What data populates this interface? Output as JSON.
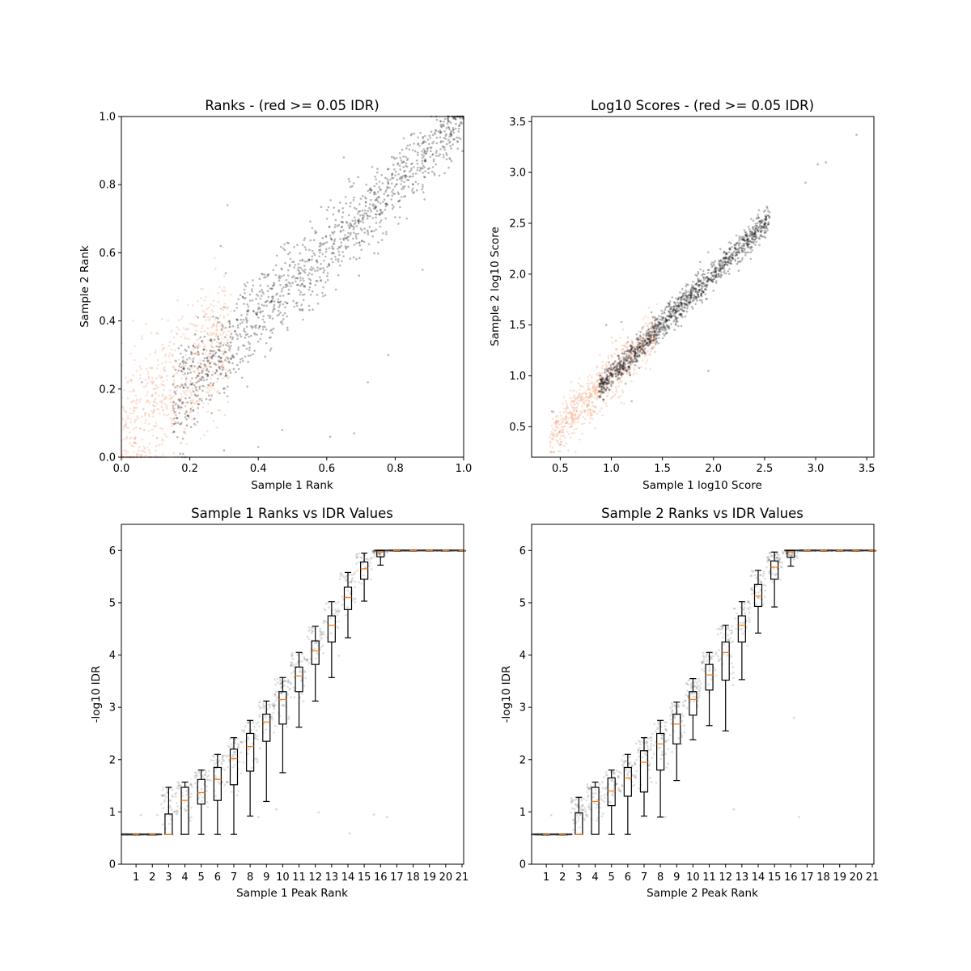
{
  "chart_data": [
    {
      "type": "scatter",
      "title": "Ranks - (red >= 0.05 IDR)",
      "xlabel": "Sample 1 Rank",
      "ylabel": "Sample 2 Rank",
      "xlim": [
        0.0,
        1.0
      ],
      "ylim": [
        0.0,
        1.0
      ],
      "xticks": [
        "0.0",
        "0.2",
        "0.4",
        "0.6",
        "0.8",
        "1.0"
      ],
      "yticks": [
        "0.0",
        "0.2",
        "0.4",
        "0.6",
        "0.8",
        "1.0"
      ],
      "colors": {
        "pass": "#000000",
        "fail": "#f4a582"
      },
      "series": [
        {
          "idr": "fail",
          "x_range": [
            0.0,
            0.32
          ],
          "trend": [
            0.04,
            1.05
          ],
          "spread": 0.09
        },
        {
          "idr": "pass",
          "x_range": [
            0.15,
            1.0
          ],
          "trend": [
            0.02,
            0.97
          ],
          "spread": 0.07
        }
      ],
      "outliers": [
        [
          0.65,
          0.88
        ],
        [
          0.31,
          0.74
        ],
        [
          0.78,
          0.3
        ],
        [
          0.72,
          0.22
        ],
        [
          0.47,
          0.08
        ],
        [
          0.68,
          0.07
        ],
        [
          0.61,
          0.06
        ],
        [
          0.4,
          0.03
        ],
        [
          0.3,
          0.02
        ],
        [
          0.06,
          0.22
        ],
        [
          0.33,
          0.43
        ],
        [
          0.29,
          0.62
        ],
        [
          0.88,
          0.55
        ]
      ]
    },
    {
      "type": "scatter",
      "title": "Log10 Scores - (red >= 0.05 IDR)",
      "xlabel": "Sample 1 log10 Score",
      "ylabel": "Sample 2 log10 Score",
      "xlim": [
        0.22,
        3.57
      ],
      "ylim": [
        0.2,
        3.55
      ],
      "xticks": [
        "0.5",
        "1.0",
        "1.5",
        "2.0",
        "2.5",
        "3.0",
        "3.5"
      ],
      "yticks": [
        "0.5",
        "1.0",
        "1.5",
        "2.0",
        "2.5",
        "3.0",
        "3.5"
      ],
      "colors": {
        "pass": "#000000",
        "fail": "#f4a582"
      },
      "series": [
        {
          "idr": "fail",
          "x_range": [
            0.4,
            1.45
          ],
          "trend": [
            0.0,
            1.0
          ],
          "spread": 0.12
        },
        {
          "idr": "pass",
          "x_range": [
            0.88,
            2.55
          ],
          "trend": [
            0.0,
            1.0
          ],
          "spread": 0.07
        }
      ],
      "outliers": [
        [
          3.4,
          3.37
        ],
        [
          3.1,
          3.1
        ],
        [
          3.02,
          3.08
        ],
        [
          2.9,
          2.9
        ],
        [
          1.95,
          1.05
        ],
        [
          1.1,
          1.53
        ],
        [
          0.95,
          1.5
        ],
        [
          0.42,
          0.65
        ],
        [
          1.2,
          0.75
        ]
      ]
    },
    {
      "type": "box",
      "title": "Sample 1 Ranks vs IDR Values",
      "xlabel": "Sample 1 Peak Rank",
      "ylabel": "-log10 IDR",
      "ylim": [
        0,
        6.5
      ],
      "yticks": [
        "0",
        "1",
        "2",
        "3",
        "4",
        "5",
        "6"
      ],
      "categories": [
        "1",
        "2",
        "3",
        "4",
        "5",
        "6",
        "7",
        "8",
        "9",
        "10",
        "11",
        "12",
        "13",
        "14",
        "15",
        "16",
        "17",
        "18",
        "19",
        "20",
        "21"
      ],
      "boxes": [
        {
          "whislo": 0.57,
          "q1": 0.57,
          "med": 0.57,
          "q3": 0.57,
          "whishi": 0.57
        },
        {
          "whislo": 0.57,
          "q1": 0.57,
          "med": 0.57,
          "q3": 0.57,
          "whishi": 0.57
        },
        {
          "whislo": 0.57,
          "q1": 0.57,
          "med": 0.57,
          "q3": 0.96,
          "whishi": 1.47
        },
        {
          "whislo": 0.57,
          "q1": 0.57,
          "med": 1.22,
          "q3": 1.47,
          "whishi": 1.57
        },
        {
          "whislo": 0.57,
          "q1": 1.15,
          "med": 1.37,
          "q3": 1.62,
          "whishi": 1.8
        },
        {
          "whislo": 0.57,
          "q1": 1.22,
          "med": 1.62,
          "q3": 1.85,
          "whishi": 2.1
        },
        {
          "whislo": 0.57,
          "q1": 1.52,
          "med": 2.02,
          "q3": 2.2,
          "whishi": 2.42
        },
        {
          "whislo": 0.92,
          "q1": 1.78,
          "med": 2.25,
          "q3": 2.5,
          "whishi": 2.75
        },
        {
          "whislo": 1.2,
          "q1": 2.35,
          "med": 2.72,
          "q3": 2.87,
          "whishi": 3.12
        },
        {
          "whislo": 1.75,
          "q1": 2.68,
          "med": 3.15,
          "q3": 3.3,
          "whishi": 3.57
        },
        {
          "whislo": 2.62,
          "q1": 3.3,
          "med": 3.6,
          "q3": 3.77,
          "whishi": 4.05
        },
        {
          "whislo": 3.12,
          "q1": 3.82,
          "med": 4.08,
          "q3": 4.27,
          "whishi": 4.55
        },
        {
          "whislo": 3.57,
          "q1": 4.25,
          "med": 4.57,
          "q3": 4.75,
          "whishi": 5.02
        },
        {
          "whislo": 4.33,
          "q1": 4.87,
          "med": 5.1,
          "q3": 5.3,
          "whishi": 5.58
        },
        {
          "whislo": 5.03,
          "q1": 5.45,
          "med": 5.65,
          "q3": 5.78,
          "whishi": 5.95
        },
        {
          "whislo": 5.72,
          "q1": 5.88,
          "med": 5.97,
          "q3": 6.0,
          "whishi": 6.0
        },
        {
          "whislo": 6.0,
          "q1": 6.0,
          "med": 6.0,
          "q3": 6.0,
          "whishi": 6.0
        },
        {
          "whislo": 6.0,
          "q1": 6.0,
          "med": 6.0,
          "q3": 6.0,
          "whishi": 6.0
        },
        {
          "whislo": 6.0,
          "q1": 6.0,
          "med": 6.0,
          "q3": 6.0,
          "whishi": 6.0
        },
        {
          "whislo": 6.0,
          "q1": 6.0,
          "med": 6.0,
          "q3": 6.0,
          "whishi": 6.0
        },
        {
          "whislo": 6.0,
          "q1": 6.0,
          "med": 6.0,
          "q3": 6.0,
          "whishi": 6.0
        }
      ],
      "outliers": [
        [
          1.3,
          0.94
        ],
        [
          2.3,
          0.94
        ],
        [
          12.2,
          0.99
        ],
        [
          14.1,
          0.59
        ],
        [
          15.6,
          0.95
        ],
        [
          16.4,
          0.9
        ],
        [
          8.5,
          0.9
        ],
        [
          9.6,
          1.05
        ]
      ]
    },
    {
      "type": "box",
      "title": "Sample 2 Ranks vs IDR Values",
      "xlabel": "Sample 2 Peak Rank",
      "ylabel": "-log10 IDR",
      "ylim": [
        0,
        6.5
      ],
      "yticks": [
        "0",
        "1",
        "2",
        "3",
        "4",
        "5",
        "6"
      ],
      "categories": [
        "1",
        "2",
        "3",
        "4",
        "5",
        "6",
        "7",
        "8",
        "9",
        "10",
        "11",
        "12",
        "13",
        "14",
        "15",
        "16",
        "17",
        "18",
        "19",
        "20",
        "21"
      ],
      "boxes": [
        {
          "whislo": 0.57,
          "q1": 0.57,
          "med": 0.57,
          "q3": 0.57,
          "whishi": 0.57
        },
        {
          "whislo": 0.57,
          "q1": 0.57,
          "med": 0.57,
          "q3": 0.57,
          "whishi": 0.57
        },
        {
          "whislo": 0.57,
          "q1": 0.57,
          "med": 0.57,
          "q3": 0.98,
          "whishi": 1.28
        },
        {
          "whislo": 0.57,
          "q1": 0.57,
          "med": 1.2,
          "q3": 1.47,
          "whishi": 1.57
        },
        {
          "whislo": 0.57,
          "q1": 1.12,
          "med": 1.4,
          "q3": 1.65,
          "whishi": 1.8
        },
        {
          "whislo": 0.57,
          "q1": 1.3,
          "med": 1.65,
          "q3": 1.85,
          "whishi": 2.1
        },
        {
          "whislo": 0.92,
          "q1": 1.38,
          "med": 1.95,
          "q3": 2.17,
          "whishi": 2.42
        },
        {
          "whislo": 0.9,
          "q1": 1.8,
          "med": 2.3,
          "q3": 2.5,
          "whishi": 2.75
        },
        {
          "whislo": 1.6,
          "q1": 2.3,
          "med": 2.68,
          "q3": 2.87,
          "whishi": 3.1
        },
        {
          "whislo": 2.38,
          "q1": 2.85,
          "med": 3.15,
          "q3": 3.3,
          "whishi": 3.55
        },
        {
          "whislo": 2.65,
          "q1": 3.33,
          "med": 3.62,
          "q3": 3.82,
          "whishi": 4.05
        },
        {
          "whislo": 2.55,
          "q1": 3.52,
          "med": 4.05,
          "q3": 4.25,
          "whishi": 4.57
        },
        {
          "whislo": 3.53,
          "q1": 4.25,
          "med": 4.57,
          "q3": 4.75,
          "whishi": 5.02
        },
        {
          "whislo": 4.42,
          "q1": 4.93,
          "med": 5.13,
          "q3": 5.35,
          "whishi": 5.62
        },
        {
          "whislo": 4.92,
          "q1": 5.45,
          "med": 5.68,
          "q3": 5.8,
          "whishi": 5.97
        },
        {
          "whislo": 5.7,
          "q1": 5.87,
          "med": 5.97,
          "q3": 6.0,
          "whishi": 6.0
        },
        {
          "whislo": 6.0,
          "q1": 6.0,
          "med": 6.0,
          "q3": 6.0,
          "whishi": 6.0
        },
        {
          "whislo": 6.0,
          "q1": 6.0,
          "med": 6.0,
          "q3": 6.0,
          "whishi": 6.0
        },
        {
          "whislo": 6.0,
          "q1": 6.0,
          "med": 6.0,
          "q3": 6.0,
          "whishi": 6.0
        },
        {
          "whislo": 6.0,
          "q1": 6.0,
          "med": 6.0,
          "q3": 6.0,
          "whishi": 6.0
        },
        {
          "whislo": 6.0,
          "q1": 6.0,
          "med": 6.0,
          "q3": 6.0,
          "whishi": 6.0
        }
      ],
      "outliers": [
        [
          1.3,
          0.94
        ],
        [
          3.5,
          0.94
        ],
        [
          8.3,
          0.9
        ],
        [
          16.5,
          0.9
        ],
        [
          16.2,
          2.8
        ],
        [
          12.5,
          1.05
        ]
      ]
    }
  ]
}
